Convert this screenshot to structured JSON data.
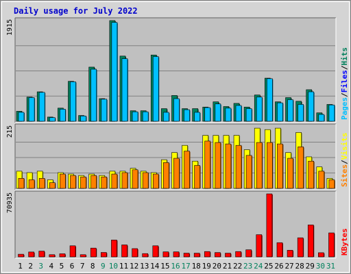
{
  "chart_data": {
    "type": "bar",
    "title": "Daily usage for July 2022",
    "categories": [
      "1",
      "2",
      "3",
      "4",
      "5",
      "6",
      "7",
      "8",
      "9",
      "10",
      "11",
      "12",
      "13",
      "14",
      "15",
      "16",
      "17",
      "18",
      "19",
      "20",
      "21",
      "22",
      "23",
      "24",
      "25",
      "26",
      "27",
      "28",
      "29",
      "30",
      "31"
    ],
    "weekend_days": [
      "3",
      "9",
      "10",
      "16",
      "17",
      "23",
      "24",
      "30",
      "31"
    ],
    "colors": {
      "hits": "#00805c",
      "files": "#00c0ff",
      "sites": "#ff8000",
      "visits": "#ffff00",
      "kbytes": "#ff0000",
      "weekday_label": "#000000",
      "weekend_label": "#00805c",
      "panel_bg": "#c0c0c0",
      "frame_bg": "#d4d4d4"
    },
    "panels": [
      {
        "id": "pages-files-hits",
        "max_label": "1915",
        "ymax": 1915,
        "legend": [
          {
            "text": "Pages",
            "color": "#00c0ff"
          },
          {
            "text": "Files",
            "color": "#0000ff"
          },
          {
            "text": "Hits",
            "color": "#00805c"
          }
        ],
        "series": [
          {
            "name": "Hits",
            "values": [
              190,
              460,
              560,
              80,
              250,
              760,
              110,
              1030,
              430,
              1915,
              1240,
              200,
              200,
              1260,
              240,
              490,
              240,
              240,
              270,
              370,
              280,
              340,
              270,
              500,
              820,
              370,
              450,
              380,
              600,
              160,
              320
            ]
          },
          {
            "name": "Files",
            "values": [
              170,
              450,
              550,
              70,
              230,
              750,
              100,
              990,
              420,
              1880,
              1190,
              180,
              180,
              1230,
              170,
              430,
              220,
              170,
              260,
              330,
              250,
              300,
              240,
              460,
              810,
              350,
              410,
              320,
              560,
              130,
              310
            ]
          }
        ]
      },
      {
        "id": "sites-visits",
        "max_label": "215",
        "ymax": 215,
        "legend": [
          {
            "text": "Sites",
            "color": "#ff8000"
          },
          {
            "text": "Visits",
            "color": "#ffff00"
          }
        ],
        "series": [
          {
            "name": "Visits",
            "values": [
              60,
              55,
              60,
              30,
              55,
              50,
              45,
              50,
              45,
              60,
              60,
              70,
              60,
              55,
              100,
              125,
              150,
              95,
              185,
              185,
              185,
              185,
              135,
              210,
              205,
              210,
              125,
              195,
              110,
              75,
              35
            ]
          },
          {
            "name": "Sites",
            "values": [
              35,
              30,
              35,
              20,
              50,
              45,
              40,
              45,
              40,
              50,
              55,
              65,
              55,
              50,
              90,
              105,
              130,
              80,
              165,
              160,
              155,
              150,
              115,
              160,
              160,
              155,
              105,
              145,
              95,
              60,
              30
            ]
          }
        ]
      },
      {
        "id": "kbytes",
        "max_label": "70935",
        "ymax": 70935,
        "legend": [
          {
            "text": "KBytes",
            "color": "#ff0000"
          }
        ],
        "series": [
          {
            "name": "KBytes",
            "values": [
              3000,
              5500,
              6500,
              2500,
              3500,
              12500,
              2500,
              9900,
              5000,
              19000,
              13500,
              9300,
              3700,
              12500,
              5700,
              5700,
              4200,
              4200,
              6000,
              4900,
              4200,
              6000,
              8000,
              25000,
              70935,
              16000,
              7500,
              21500,
              36000,
              4700,
              27000
            ]
          }
        ]
      }
    ]
  }
}
